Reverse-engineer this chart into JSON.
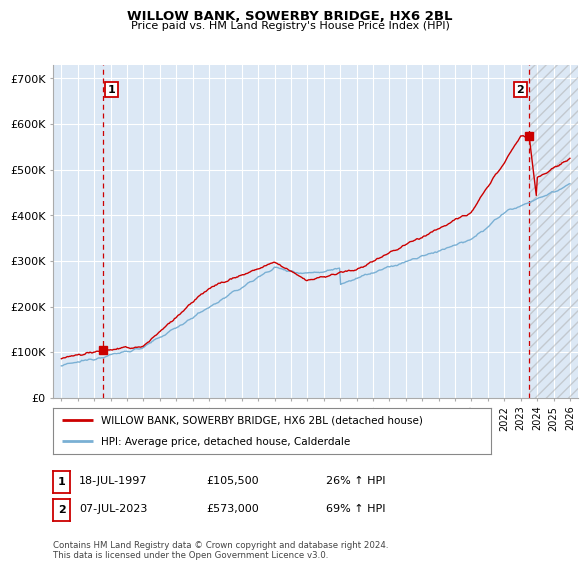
{
  "title": "WILLOW BANK, SOWERBY BRIDGE, HX6 2BL",
  "subtitle": "Price paid vs. HM Land Registry's House Price Index (HPI)",
  "ylabel_ticks": [
    "£0",
    "£100K",
    "£200K",
    "£300K",
    "£400K",
    "£500K",
    "£600K",
    "£700K"
  ],
  "ytick_values": [
    0,
    100000,
    200000,
    300000,
    400000,
    500000,
    600000,
    700000
  ],
  "ylim": [
    0,
    730000
  ],
  "xlim_start": 1994.5,
  "xlim_end": 2026.5,
  "point1_x": 1997.54,
  "point1_y": 105500,
  "point2_x": 2023.52,
  "point2_y": 573000,
  "legend_line1": "WILLOW BANK, SOWERBY BRIDGE, HX6 2BL (detached house)",
  "legend_line2": "HPI: Average price, detached house, Calderdale",
  "table_row1": [
    "1",
    "18-JUL-1997",
    "£105,500",
    "26% ↑ HPI"
  ],
  "table_row2": [
    "2",
    "07-JUL-2023",
    "£573,000",
    "69% ↑ HPI"
  ],
  "footnote": "Contains HM Land Registry data © Crown copyright and database right 2024.\nThis data is licensed under the Open Government Licence v3.0.",
  "line_color_red": "#cc0000",
  "line_color_blue": "#7ab0d4",
  "point_color": "#cc0000",
  "bg_color": "#dce8f5",
  "grid_color": "#ffffff",
  "dashed_color": "#cc0000",
  "hatch_end": 2026.5,
  "hatch_start": 2023.52
}
